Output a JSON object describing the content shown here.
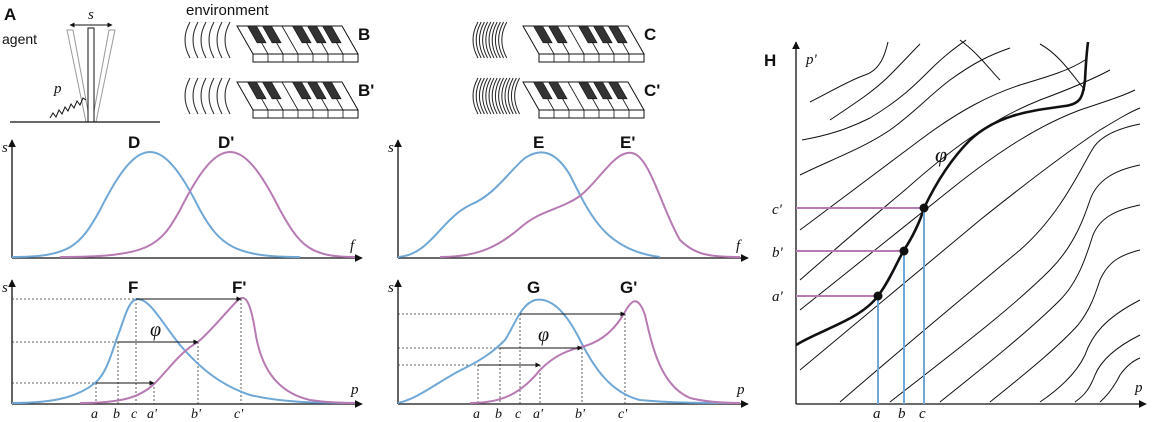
{
  "colors": {
    "blue": "#6fa7d6",
    "magenta": "#b77ab3",
    "black": "#111111"
  },
  "panelA": {
    "label": "A",
    "agent": "agent",
    "s": "s",
    "p": "p"
  },
  "pianos": {
    "environment": "environment",
    "B": "B",
    "B2": "B'",
    "C": "C",
    "C2": "C'"
  },
  "axes": {
    "s": "s",
    "f": "f",
    "p": "p",
    "p_prime": "p'"
  },
  "panelD": {
    "label1": "D",
    "label2": "D'"
  },
  "panelE": {
    "label1": "E",
    "label2": "E'"
  },
  "panelF": {
    "label1": "F",
    "label2": "F'",
    "phi": "φ",
    "ticks": [
      "a",
      "b",
      "c",
      "a'",
      "b'",
      "c'"
    ]
  },
  "panelG": {
    "label1": "G",
    "label2": "G'",
    "phi": "φ",
    "ticks": [
      "a",
      "b",
      "c",
      "a'",
      "b'",
      "c'"
    ]
  },
  "panelH": {
    "label": "H",
    "phi": "φ",
    "xticks": [
      "a",
      "b",
      "c"
    ],
    "yticks": [
      "a'",
      "b'",
      "c'"
    ]
  }
}
